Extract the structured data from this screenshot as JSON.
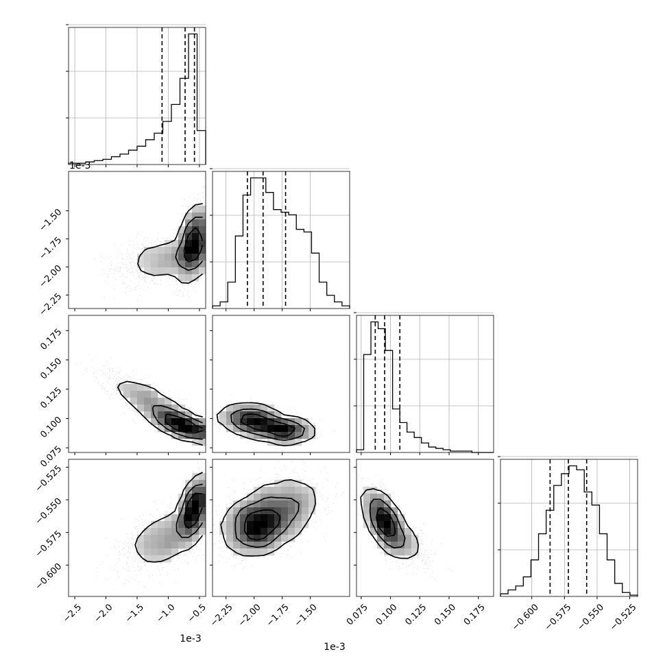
{
  "chart_data": {
    "type": "corner",
    "n_params": 4,
    "param_ranges": [
      [
        -2.6,
        -0.4
      ],
      [
        -2.37,
        -1.15
      ],
      [
        0.071,
        0.188
      ],
      [
        -0.624,
        -0.519
      ]
    ],
    "scale_labels": [
      "1e-3",
      "1e-3",
      "",
      ""
    ],
    "ticks": [
      {
        "values": [
          -2.5,
          -2.0,
          -1.5,
          -1.0,
          -0.5
        ],
        "labels": [
          "−2.5",
          "−2.0",
          "−1.5",
          "−1.0",
          "−0.5"
        ]
      },
      {
        "values": [
          -2.25,
          -2.0,
          -1.75,
          -1.5
        ],
        "labels": [
          "−2.25",
          "−2.00",
          "−1.75",
          "−1.50"
        ]
      },
      {
        "values": [
          0.075,
          0.1,
          0.125,
          0.15,
          0.175
        ],
        "labels": [
          "0.075",
          "0.100",
          "0.125",
          "0.150",
          "0.175"
        ]
      },
      {
        "values": [
          -0.6,
          -0.575,
          -0.55,
          -0.525
        ],
        "labels": [
          "−0.600",
          "−0.575",
          "−0.550",
          "−0.525"
        ]
      }
    ],
    "quantiles": [
      [
        -1.1,
        -0.73,
        -0.58
      ],
      [
        -2.06,
        -1.92,
        -1.72
      ],
      [
        0.087,
        0.095,
        0.108
      ],
      [
        -0.586,
        -0.572,
        -0.558
      ]
    ],
    "histograms": [
      {
        "values": [
          1,
          1,
          2,
          3,
          4,
          6,
          8,
          11,
          14,
          19,
          24,
          33,
          46,
          66,
          100,
          26
        ]
      },
      {
        "values": [
          2,
          5,
          20,
          55,
          86,
          99,
          99,
          88,
          75,
          73,
          71,
          60,
          58,
          42,
          20,
          10,
          5,
          2
        ]
      },
      {
        "values": [
          2,
          72,
          96,
          91,
          75,
          32,
          22,
          15,
          11,
          7,
          4,
          3,
          2,
          1,
          1,
          1,
          0,
          0,
          0
        ]
      },
      {
        "values": [
          2,
          5,
          8,
          15,
          28,
          48,
          66,
          85,
          94,
          100,
          97,
          80,
          70,
          48,
          28,
          10,
          3,
          1
        ]
      }
    ],
    "pair_distributions": [
      {
        "x": 1,
        "y": 0,
        "components": [
          {
            "mx": -0.6,
            "my": -1.78,
            "sx": 0.1,
            "sy": 0.17,
            "rho": 0.45,
            "w": 0.6
          },
          {
            "mx": -1.05,
            "my": -1.94,
            "sx": 0.4,
            "sy": 0.11,
            "rho": 0.3,
            "w": 0.4
          }
        ]
      },
      {
        "x": 2,
        "y": 0,
        "components": [
          {
            "mx": -0.7,
            "my": 0.093,
            "sx": 0.3,
            "sy": 0.006,
            "rho": -0.85,
            "w": 0.55
          },
          {
            "mx": -1.25,
            "my": 0.113,
            "sx": 0.4,
            "sy": 0.013,
            "rho": -0.85,
            "w": 0.45
          }
        ]
      },
      {
        "x": 2,
        "y": 1,
        "components": [
          {
            "mx": -2.03,
            "my": 0.099,
            "sx": 0.14,
            "sy": 0.006,
            "rho": -0.2,
            "w": 0.55
          },
          {
            "mx": -1.73,
            "my": 0.09,
            "sx": 0.13,
            "sy": 0.004,
            "rho": -0.2,
            "w": 0.45
          }
        ]
      },
      {
        "x": 3,
        "y": 0,
        "components": [
          {
            "mx": -0.6,
            "my": -0.557,
            "sx": 0.1,
            "sy": 0.012,
            "rho": 0.55,
            "w": 0.55
          },
          {
            "mx": -1.05,
            "my": -0.58,
            "sx": 0.35,
            "sy": 0.012,
            "rho": 0.5,
            "w": 0.45
          }
        ]
      },
      {
        "x": 3,
        "y": 1,
        "components": [
          {
            "mx": -1.98,
            "my": -0.569,
            "sx": 0.15,
            "sy": 0.011,
            "rho": 0.1,
            "w": 0.65
          },
          {
            "mx": -1.72,
            "my": -0.556,
            "sx": 0.17,
            "sy": 0.014,
            "rho": 0.35,
            "w": 0.35
          }
        ]
      },
      {
        "x": 3,
        "y": 2,
        "components": [
          {
            "mx": 0.094,
            "my": -0.565,
            "sx": 0.008,
            "sy": 0.012,
            "rho": -0.65,
            "w": 0.7
          },
          {
            "mx": 0.107,
            "my": -0.58,
            "sx": 0.012,
            "sy": 0.01,
            "rho": -0.6,
            "w": 0.3
          }
        ]
      }
    ],
    "grid": true,
    "colors": {
      "line": "#000000",
      "grid": "#b0b0b0",
      "scatter": "#000000"
    }
  }
}
